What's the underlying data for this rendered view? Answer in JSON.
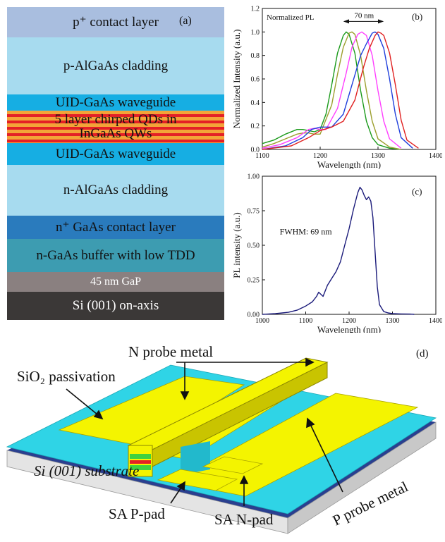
{
  "panel_a": {
    "letter": "(a)",
    "layers": [
      {
        "label": "p⁺ contact layer",
        "color": "#a9bedf"
      },
      {
        "label": "p-AlGaAs cladding",
        "color": "#a7dbef"
      },
      {
        "label": "UID-GaAs waveguide",
        "color": "#16aee3"
      },
      {
        "label": "5 layer chirped QDs in InGaAs QWs",
        "color": "#f3a338"
      },
      {
        "label": "UID-GaAs waveguide",
        "color": "#16aee3"
      },
      {
        "label": "n-AlGaAs cladding",
        "color": "#a7dbef"
      },
      {
        "label": "n⁺ GaAs contact layer",
        "color": "#2a7bbd"
      },
      {
        "label": "n-GaAs buffer with low TDD",
        "color": "#3d9cb1"
      },
      {
        "label": "45 nm GaP",
        "color": "#8a8080"
      },
      {
        "label": "Si (001) on-axis",
        "color": "#3b3837"
      }
    ],
    "qd_stripe_color": "#e42026"
  },
  "chart_data": [
    {
      "type": "line",
      "panel": "(b)",
      "title": "",
      "annotation": "Normalized PL",
      "span_annotation": "70 nm",
      "xlabel": "Wavelength (nm)",
      "ylabel": "Normalized Intensity (a.u.)",
      "xlim": [
        1100,
        1400
      ],
      "ylim": [
        0,
        1.2
      ],
      "xticks": [
        1100,
        1200,
        1300,
        1400
      ],
      "yticks": [
        0.0,
        0.2,
        0.4,
        0.6,
        0.8,
        1.0,
        1.2
      ],
      "series": [
        {
          "color": "#1a9a1a",
          "x": [
            1100,
            1120,
            1140,
            1160,
            1170,
            1180,
            1190,
            1200,
            1210,
            1220,
            1230,
            1240,
            1245,
            1250,
            1260,
            1270,
            1280,
            1290,
            1300,
            1320,
            1340
          ],
          "y": [
            0.05,
            0.08,
            0.13,
            0.17,
            0.17,
            0.16,
            0.15,
            0.17,
            0.3,
            0.55,
            0.82,
            0.97,
            1.0,
            0.98,
            0.82,
            0.5,
            0.24,
            0.1,
            0.04,
            0.01,
            0.0
          ]
        },
        {
          "color": "#9c9f2e",
          "x": [
            1100,
            1120,
            1140,
            1160,
            1170,
            1180,
            1190,
            1200,
            1220,
            1230,
            1240,
            1250,
            1255,
            1260,
            1270,
            1280,
            1290,
            1300,
            1320,
            1340
          ],
          "y": [
            0.02,
            0.05,
            0.09,
            0.13,
            0.14,
            0.14,
            0.13,
            0.13,
            0.38,
            0.64,
            0.87,
            0.99,
            1.0,
            0.98,
            0.8,
            0.5,
            0.24,
            0.09,
            0.02,
            0.0
          ]
        },
        {
          "color": "#ff3fff",
          "x": [
            1100,
            1130,
            1160,
            1180,
            1190,
            1200,
            1210,
            1230,
            1245,
            1255,
            1265,
            1272,
            1280,
            1290,
            1300,
            1310,
            1320,
            1340
          ],
          "y": [
            0.01,
            0.04,
            0.1,
            0.17,
            0.18,
            0.17,
            0.17,
            0.35,
            0.65,
            0.87,
            0.98,
            1.0,
            0.97,
            0.8,
            0.5,
            0.24,
            0.09,
            0.01
          ]
        },
        {
          "color": "#1f3fdc",
          "x": [
            1100,
            1140,
            1170,
            1185,
            1200,
            1220,
            1240,
            1255,
            1270,
            1280,
            1290,
            1295,
            1300,
            1310,
            1320,
            1330,
            1340,
            1360
          ],
          "y": [
            0.0,
            0.03,
            0.1,
            0.17,
            0.19,
            0.19,
            0.3,
            0.55,
            0.8,
            0.9,
            0.99,
            1.0,
            0.98,
            0.86,
            0.6,
            0.3,
            0.1,
            0.01
          ]
        },
        {
          "color": "#e02020",
          "x": [
            1100,
            1150,
            1180,
            1200,
            1220,
            1240,
            1260,
            1275,
            1285,
            1295,
            1300,
            1305,
            1310,
            1320,
            1330,
            1340,
            1350,
            1370
          ],
          "y": [
            0.0,
            0.03,
            0.1,
            0.16,
            0.19,
            0.24,
            0.42,
            0.7,
            0.86,
            0.97,
            1.0,
            0.99,
            0.97,
            0.82,
            0.55,
            0.25,
            0.08,
            0.01
          ]
        }
      ]
    },
    {
      "type": "line",
      "panel": "(c)",
      "title": "",
      "annotation": "FWHM: 69 nm",
      "xlabel": "Wavelength (nm)",
      "ylabel": "PL intensity (a.u.)",
      "xlim": [
        1000,
        1400
      ],
      "ylim": [
        0,
        1.0
      ],
      "xticks": [
        1000,
        1100,
        1200,
        1300,
        1400
      ],
      "yticks": [
        0.0,
        0.25,
        0.5,
        0.75,
        1.0
      ],
      "series": [
        {
          "color": "#1a1a7a",
          "x": [
            1000,
            1030,
            1060,
            1080,
            1100,
            1115,
            1125,
            1130,
            1140,
            1150,
            1160,
            1170,
            1180,
            1190,
            1200,
            1210,
            1220,
            1225,
            1230,
            1235,
            1240,
            1245,
            1250,
            1255,
            1260,
            1265,
            1270,
            1280,
            1290,
            1300,
            1320,
            1340,
            1350
          ],
          "y": [
            0.0,
            0.005,
            0.015,
            0.03,
            0.06,
            0.09,
            0.13,
            0.16,
            0.13,
            0.21,
            0.26,
            0.31,
            0.38,
            0.5,
            0.62,
            0.76,
            0.88,
            0.92,
            0.9,
            0.86,
            0.83,
            0.85,
            0.82,
            0.7,
            0.45,
            0.2,
            0.07,
            0.02,
            0.01,
            0.005,
            0.003,
            0.002,
            0.0
          ]
        }
      ]
    }
  ],
  "panel_d": {
    "letter": "(d)",
    "labels": {
      "n_probe": "N probe metal",
      "sio2": "SiO₂ passivation",
      "substrate": "Si (001) substrate",
      "sa_p": "SA P-pad",
      "sa_n": "SA N-pad",
      "p_probe": "P probe metal"
    },
    "colors": {
      "metal": "#f4f400",
      "metal_side": "#c9c400",
      "sio2": "#2fd4e6",
      "substrate_side": "#d8d8d8"
    }
  }
}
